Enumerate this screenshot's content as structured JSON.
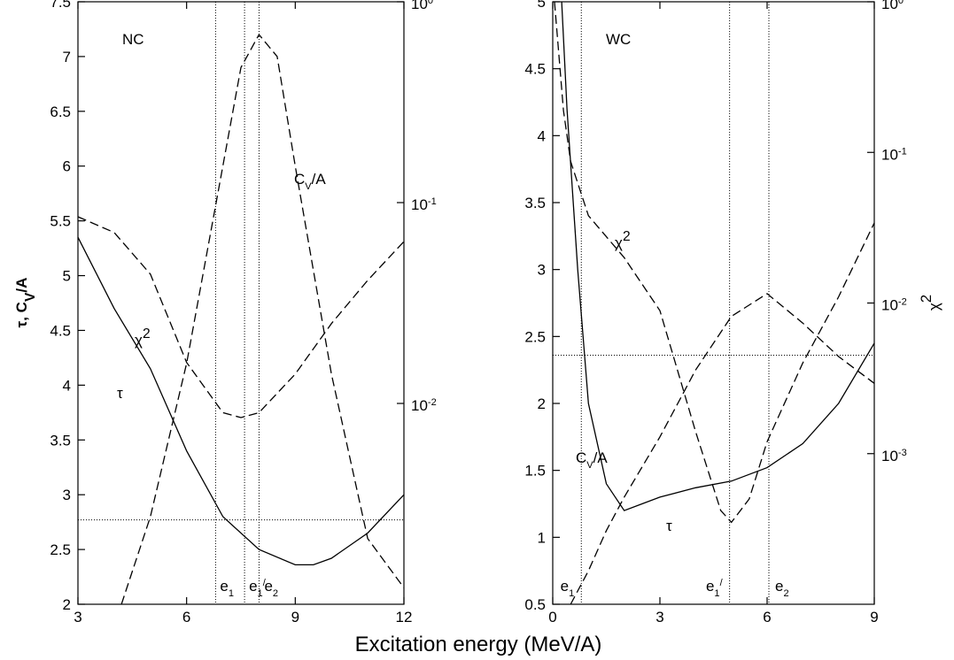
{
  "xlabel": "Excitation energy (MeV/A)",
  "ylabel": [
    "τ, C",
    "V",
    "/A"
  ],
  "y2label": [
    "χ",
    "2"
  ],
  "chart_data": [
    {
      "type": "line",
      "xlim": [
        3,
        12
      ],
      "xticks": [
        3,
        6,
        9,
        12
      ],
      "ylim": [
        2,
        7.5
      ],
      "yticks": [
        2,
        2.5,
        3,
        3.5,
        4,
        4.5,
        5,
        5.5,
        6,
        6.5,
        7,
        7.5
      ],
      "y2lim": [
        0.001,
        1
      ],
      "y2log": true,
      "y2ticks": [
        {
          "value": 1,
          "label": "10",
          "exp": "0"
        },
        {
          "value": 0.1,
          "label": "10",
          "exp": "-1"
        },
        {
          "value": 0.01,
          "label": "10",
          "exp": "-2"
        }
      ],
      "series": [
        {
          "color": "#000000",
          "dash": false,
          "x": [
            3,
            4,
            5,
            6,
            7,
            8,
            9,
            9.5,
            10,
            11,
            12
          ],
          "values": [
            5.35,
            4.7,
            4.15,
            3.4,
            2.8,
            2.5,
            2.36,
            2.36,
            2.42,
            2.65,
            3.0
          ]
        },
        {
          "color": "#000000",
          "dash": true,
          "x": [
            4.2,
            5,
            6,
            7,
            7.5,
            8,
            8.5,
            9,
            10,
            11,
            12
          ],
          "values": [
            2.0,
            2.8,
            4.2,
            6.0,
            6.9,
            7.2,
            7.0,
            6.0,
            4.1,
            2.6,
            2.15
          ]
        },
        {
          "color": "#000000",
          "dash": true,
          "axis": "y2",
          "x": [
            3,
            4,
            5,
            6,
            7,
            7.5,
            8,
            9,
            10,
            11,
            12
          ],
          "values": [
            0.085,
            0.071,
            0.044,
            0.016,
            0.009,
            0.0085,
            0.009,
            0.014,
            0.025,
            0.041,
            0.064
          ]
        }
      ],
      "hline": 2.77,
      "vlines": [
        {
          "x": 6.8,
          "label": "e",
          "sub": "1"
        },
        {
          "x": 7.6,
          "label": "e",
          "sub": "1",
          "sup": "/"
        },
        {
          "x": 8.0,
          "label": "e",
          "sub": "2"
        }
      ],
      "annotations": [
        [
          "NC"
        ],
        [
          "C",
          "V",
          "/A"
        ],
        [
          "χ",
          "2"
        ],
        [
          "τ"
        ]
      ]
    },
    {
      "type": "line",
      "xlim": [
        0,
        9
      ],
      "xticks": [
        0,
        3,
        6,
        9
      ],
      "ylim": [
        0.5,
        5
      ],
      "yticks": [
        0.5,
        1,
        1.5,
        2,
        2.5,
        3,
        3.5,
        4,
        4.5,
        5
      ],
      "y2lim": [
        0.0001,
        1
      ],
      "y2log": true,
      "y2ticks": [
        {
          "value": 1,
          "label": "10",
          "exp": "0"
        },
        {
          "value": 0.1,
          "label": "10",
          "exp": "-1"
        },
        {
          "value": 0.01,
          "label": "10",
          "exp": "-2"
        },
        {
          "value": 0.001,
          "label": "10",
          "exp": "-3"
        }
      ],
      "series": [
        {
          "color": "#000000",
          "dash": false,
          "x": [
            0.25,
            0.4,
            0.7,
            1.0,
            1.5,
            2.0,
            2.5,
            3,
            4,
            5,
            6,
            7,
            8,
            9
          ],
          "values": [
            5,
            4.2,
            3.0,
            2.0,
            1.4,
            1.2,
            1.25,
            1.3,
            1.37,
            1.42,
            1.52,
            1.7,
            2.0,
            2.45
          ]
        },
        {
          "color": "#000000",
          "dash": true,
          "x": [
            0.5,
            1.0,
            1.5,
            2,
            3,
            4,
            5,
            6,
            7,
            8,
            9
          ],
          "values": [
            0.5,
            0.75,
            1.05,
            1.3,
            1.75,
            2.25,
            2.65,
            2.82,
            2.6,
            2.35,
            2.15
          ]
        },
        {
          "color": "#000000",
          "dash": true,
          "axis": "y2",
          "x": [
            0.05,
            0.3,
            0.5,
            1,
            2,
            3,
            4,
            4.7,
            5,
            5.5,
            6,
            7,
            8,
            9
          ],
          "values": [
            1,
            0.19,
            0.087,
            0.038,
            0.02,
            0.0089,
            0.0014,
            0.00042,
            0.00035,
            0.0005,
            0.0012,
            0.004,
            0.011,
            0.034
          ]
        }
      ],
      "hline": 2.36,
      "vlines": [
        {
          "x": 0.8,
          "label": "e",
          "sub": "1"
        },
        {
          "x": 4.95,
          "label": "e",
          "sub": "1",
          "sup": "/"
        },
        {
          "x": 6.05,
          "label": "e",
          "sub": "2"
        }
      ],
      "annotations": [
        [
          "WC"
        ],
        [
          "χ",
          "2"
        ],
        [
          "C",
          "V",
          "/A"
        ],
        [
          "τ"
        ]
      ]
    }
  ]
}
